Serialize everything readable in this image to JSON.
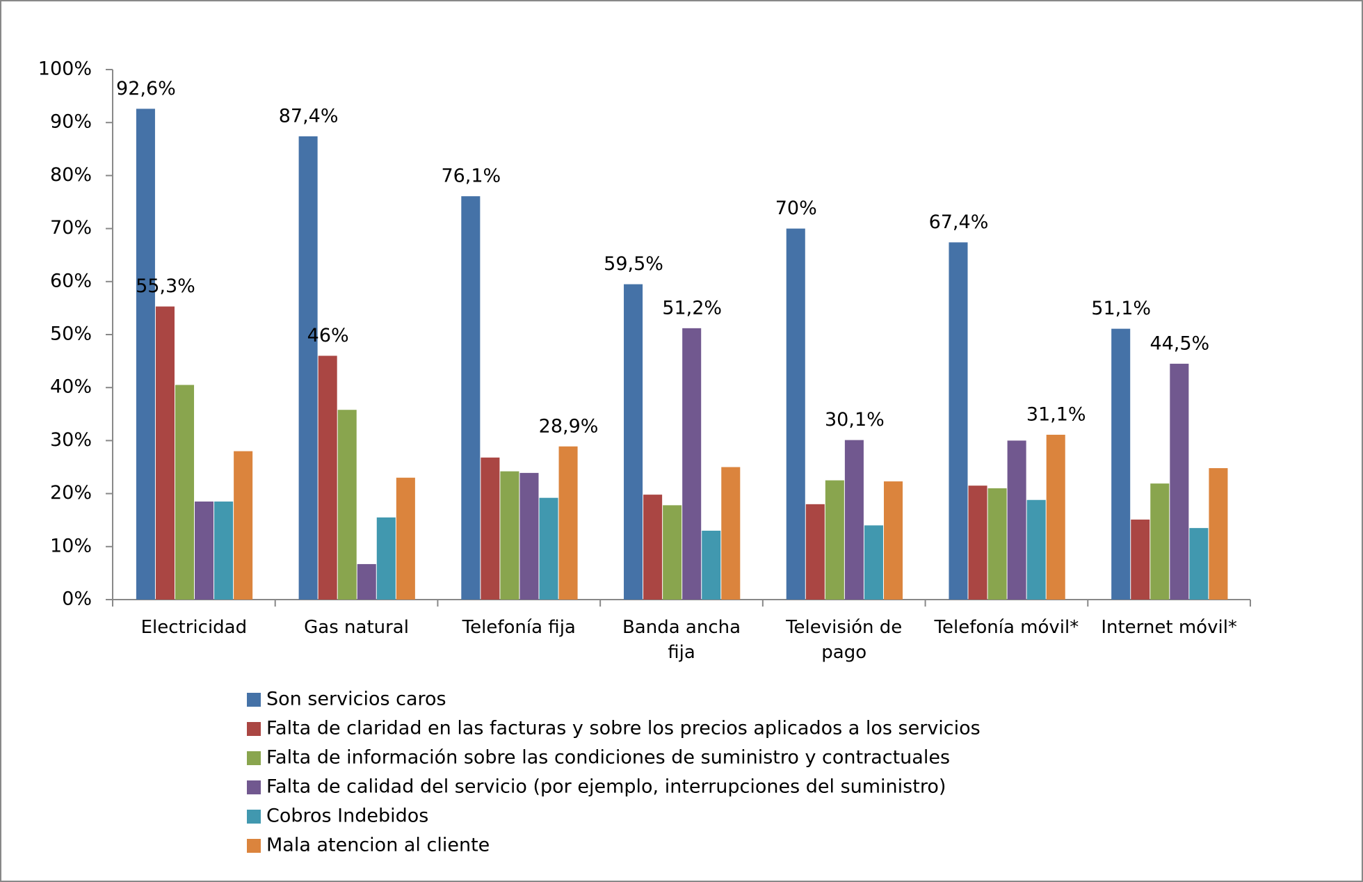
{
  "chart_data": {
    "type": "bar",
    "categories": [
      "Electricidad",
      "Gas natural",
      "Telefonía fija",
      "Banda ancha fija",
      "Televisión de pago",
      "Telefonía móvil*",
      "Internet móvil*"
    ],
    "series": [
      {
        "name": "Son servicios caros",
        "color": "#4572a7",
        "values": [
          92.6,
          87.4,
          76.1,
          59.5,
          70,
          67.4,
          51.1
        ],
        "value_labels": [
          "92,6%",
          "87,4%",
          "76,1%",
          "59,5%",
          "70%",
          "67,4%",
          "51,1%"
        ]
      },
      {
        "name": "Falta de claridad en las facturas y sobre los precios aplicados a los servicios",
        "color": "#aa4643",
        "values": [
          55.3,
          46,
          26.8,
          19.8,
          18,
          21.5,
          15.1
        ],
        "value_labels": [
          "55,3%",
          "46%",
          null,
          null,
          null,
          null,
          null
        ]
      },
      {
        "name": "Falta de información sobre las condiciones de suministro y contractuales",
        "color": "#89a54e",
        "values": [
          40.5,
          35.8,
          24.2,
          17.8,
          22.5,
          21,
          21.9
        ],
        "value_labels": [
          null,
          null,
          null,
          null,
          null,
          null,
          null
        ]
      },
      {
        "name": "Falta de calidad del servicio (por ejemplo, interrupciones del suministro)",
        "color": "#71588f",
        "values": [
          18.5,
          6.7,
          23.9,
          51.2,
          30.1,
          30,
          44.5
        ],
        "value_labels": [
          null,
          null,
          null,
          "51,2%",
          "30,1%",
          null,
          "44,5%"
        ]
      },
      {
        "name": "Cobros Indebidos",
        "color": "#4198af",
        "values": [
          18.5,
          15.5,
          19.2,
          13,
          14,
          18.8,
          13.5
        ],
        "value_labels": [
          null,
          null,
          null,
          null,
          null,
          null,
          null
        ]
      },
      {
        "name": "Mala atencion al cliente",
        "color": "#db843d",
        "values": [
          28,
          23,
          28.9,
          25,
          22.3,
          31.1,
          24.8
        ],
        "value_labels": [
          null,
          null,
          "28,9%",
          null,
          null,
          "31,1%",
          null
        ]
      }
    ],
    "ylim": [
      0,
      100
    ],
    "yticks": [
      {
        "value": 0,
        "label": "0%"
      },
      {
        "value": 10,
        "label": "10%"
      },
      {
        "value": 20,
        "label": "20%"
      },
      {
        "value": 30,
        "label": "30%"
      },
      {
        "value": 40,
        "label": "40%"
      },
      {
        "value": 50,
        "label": "50%"
      },
      {
        "value": 60,
        "label": "60%"
      },
      {
        "value": 70,
        "label": "70%"
      },
      {
        "value": 80,
        "label": "80%"
      },
      {
        "value": 90,
        "label": "90%"
      },
      {
        "value": 100,
        "label": "100%"
      }
    ],
    "grid": false
  }
}
